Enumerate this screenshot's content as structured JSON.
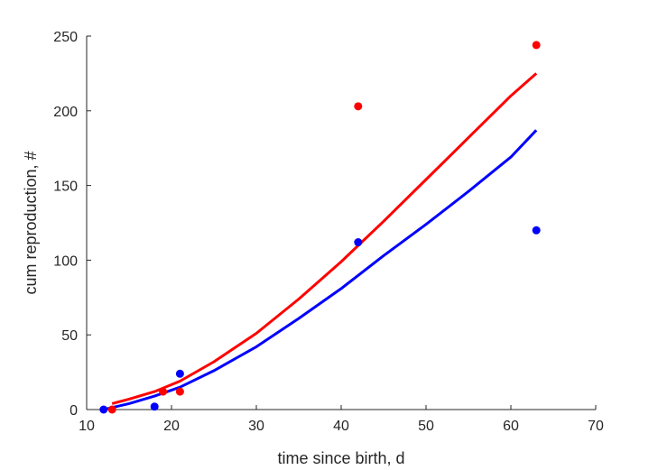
{
  "chart_data": {
    "type": "scatter",
    "title": "",
    "xlabel": "time since birth, d",
    "ylabel": "cum reproduction, #",
    "xlim": [
      10,
      70
    ],
    "ylim": [
      0,
      250
    ],
    "xticks": [
      10,
      20,
      30,
      40,
      50,
      60,
      70
    ],
    "yticks": [
      0,
      50,
      100,
      150,
      200,
      250
    ],
    "grid": false,
    "legend": "none",
    "series": [
      {
        "kind": "points",
        "color": "#0000ff",
        "x": [
          12,
          18,
          21,
          42,
          63
        ],
        "y": [
          0,
          2,
          24,
          112,
          120
        ]
      },
      {
        "kind": "points",
        "color": "#ff0000",
        "x": [
          13,
          19,
          21,
          42,
          63
        ],
        "y": [
          0,
          12,
          12,
          203,
          244
        ]
      },
      {
        "kind": "line",
        "color": "#0000ff",
        "x": [
          12,
          15,
          18,
          21,
          25,
          30,
          35,
          40,
          45,
          50,
          55,
          60,
          63
        ],
        "y": [
          0,
          4,
          9,
          15,
          26,
          42,
          61,
          81,
          103,
          124,
          146,
          169,
          187
        ]
      },
      {
        "kind": "line",
        "color": "#ff0000",
        "x": [
          13,
          15,
          18,
          21,
          25,
          30,
          35,
          40,
          45,
          50,
          55,
          60,
          63
        ],
        "y": [
          4,
          7,
          12,
          19,
          32,
          51,
          74,
          99,
          126,
          154,
          182,
          210,
          225
        ]
      }
    ]
  }
}
